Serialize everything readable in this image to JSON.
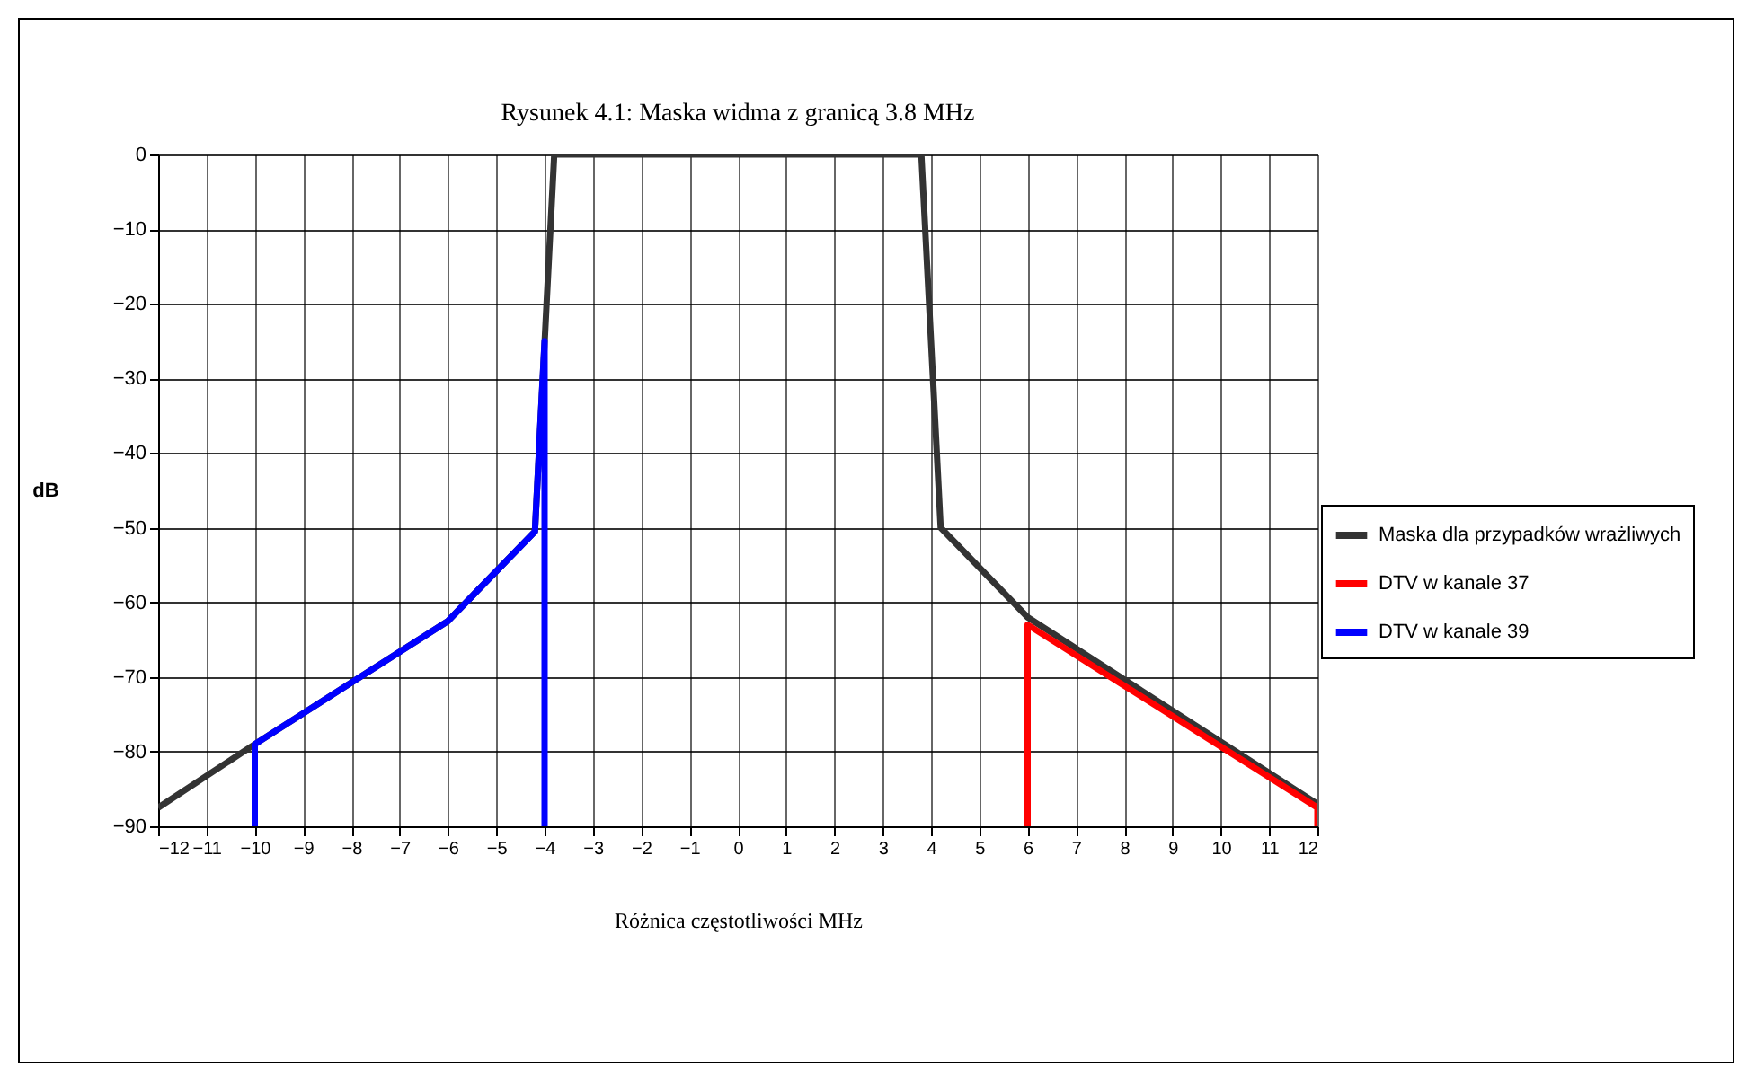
{
  "chart_data": {
    "type": "line",
    "title": "Rysunek 4.1: Maska widma z granicą 3.8 MHz",
    "xlabel": "Różnica częstotliwości MHz",
    "ylabel": "dB",
    "series": [
      {
        "name": "Maska dla przypadków wrażliwych",
        "color": "#333333",
        "x": [
          -12,
          -10,
          -6,
          -4.2,
          -3.8,
          3.8,
          4.2,
          6,
          12
        ],
        "values": [
          -87.5,
          -79,
          -62.5,
          -50.5,
          0,
          0,
          -50,
          -62,
          -87
        ]
      },
      {
        "name": "DTV w kanale 37",
        "color": "#ff0000",
        "x": [
          6,
          6,
          12,
          12
        ],
        "values": [
          -90,
          -63,
          -87.5,
          -90
        ]
      },
      {
        "name": "DTV w kanale 39",
        "color": "#0000ff",
        "x": [
          -10,
          -10,
          -6,
          -4.2,
          -4,
          -4
        ],
        "values": [
          -90,
          -79,
          -62.5,
          -50.5,
          -25,
          -90
        ]
      }
    ],
    "xlim": [
      -12,
      12
    ],
    "xticks": [
      -12,
      -11,
      -10,
      -9,
      -8,
      -7,
      -6,
      -5,
      -4,
      -3,
      -2,
      -1,
      0,
      1,
      2,
      3,
      4,
      5,
      6,
      7,
      8,
      9,
      10,
      11,
      12
    ],
    "ylim": [
      -90,
      0
    ],
    "yticks": [
      -90,
      -80,
      -70,
      -60,
      -50,
      -40,
      -30,
      -20,
      -10,
      0
    ],
    "grid": true,
    "legend": "right",
    "line_style": "solid",
    "marker": "none"
  }
}
